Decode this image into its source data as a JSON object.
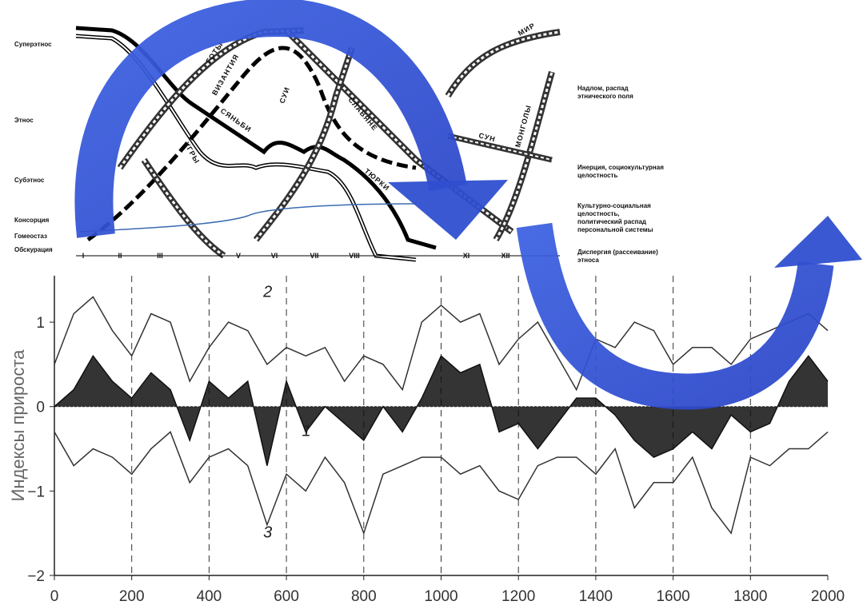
{
  "diagram": {
    "levels": [
      "Суперэтнос",
      "Этнос",
      "Субэтнос",
      "Консорция",
      "Гомеостаз",
      "Обскурация"
    ],
    "phases": [
      "I",
      "II",
      "III",
      "V",
      "VI",
      "VII",
      "VIII",
      "XI",
      "XII"
    ],
    "phase_notes": [
      "Надлом, распад этнического поля",
      "Инерция, социокультурная целостность",
      "Культурно-социальная целостность, политический распад персональной системы",
      "Диспергия (рассеивание) этноса"
    ],
    "bands": [
      "ГОТЫ",
      "ВИЗАНТИЯ",
      "СУИ",
      "СЯНЬБИ",
      "УГРЫ",
      "СЛАВЯНЕ",
      "ТЮРКИ",
      "СУН",
      "МОНГОЛЫ",
      "МИР"
    ]
  },
  "chart_data": {
    "type": "line",
    "y_label": "Индексы прироста",
    "x": [
      0,
      50,
      100,
      150,
      200,
      250,
      300,
      350,
      400,
      450,
      500,
      550,
      600,
      650,
      700,
      750,
      800,
      850,
      900,
      950,
      1000,
      1050,
      1100,
      1150,
      1200,
      1250,
      1300,
      1350,
      1400,
      1450,
      1500,
      1550,
      1600,
      1650,
      1700,
      1750,
      1800,
      1850,
      1900,
      1950,
      2000
    ],
    "series": [
      {
        "name": "2",
        "color": "#333333",
        "values": [
          0.5,
          1.1,
          1.3,
          0.9,
          0.6,
          1.1,
          1.0,
          0.3,
          0.7,
          1.0,
          0.9,
          0.5,
          0.7,
          0.6,
          0.7,
          0.3,
          0.6,
          0.5,
          0.2,
          1.0,
          1.2,
          1.0,
          1.1,
          0.5,
          0.8,
          1.0,
          0.6,
          0.2,
          0.8,
          0.7,
          1.0,
          0.9,
          0.5,
          0.7,
          0.7,
          0.5,
          0.8,
          0.9,
          1.0,
          1.1,
          0.9
        ]
      },
      {
        "name": "3",
        "color": "#333333",
        "values": [
          -0.3,
          -0.7,
          -0.5,
          -0.6,
          -0.8,
          -0.5,
          -0.3,
          -0.9,
          -0.6,
          -0.5,
          -0.7,
          -1.4,
          -0.8,
          -1.0,
          -0.6,
          -0.9,
          -1.5,
          -0.8,
          -0.7,
          -0.6,
          -0.6,
          -0.8,
          -0.7,
          -1.0,
          -1.1,
          -0.7,
          -0.6,
          -0.6,
          -0.8,
          -0.5,
          -1.2,
          -0.9,
          -0.9,
          -0.6,
          -1.2,
          -1.5,
          -0.6,
          -0.7,
          -0.5,
          -0.5,
          -0.3
        ]
      },
      {
        "name": "1",
        "color": "#111111",
        "fill": true,
        "values": [
          0,
          0.2,
          0.6,
          0.3,
          0.1,
          0.4,
          0.2,
          -0.4,
          0.3,
          0.1,
          0.3,
          -0.7,
          0.3,
          -0.3,
          0.0,
          -0.2,
          -0.4,
          0.0,
          -0.3,
          0.1,
          0.6,
          0.4,
          0.5,
          -0.3,
          -0.2,
          -0.5,
          -0.2,
          0.1,
          0.1,
          -0.1,
          -0.4,
          -0.6,
          -0.5,
          -0.3,
          -0.5,
          -0.1,
          -0.3,
          -0.2,
          0.3,
          0.6,
          0.3
        ]
      }
    ],
    "xlim": [
      0,
      2000
    ],
    "xticks": [
      0,
      200,
      400,
      600,
      800,
      1000,
      1200,
      1400,
      1600,
      1800,
      2000
    ],
    "ylim": [
      -2,
      1.55
    ],
    "yticks": [
      {
        "value": -2,
        "label": "−2"
      },
      {
        "value": -1,
        "label": "−1"
      },
      0,
      1
    ],
    "xgrid_dashed": [
      200,
      400,
      600,
      800,
      1000,
      1200,
      1400,
      1600,
      1800
    ]
  }
}
